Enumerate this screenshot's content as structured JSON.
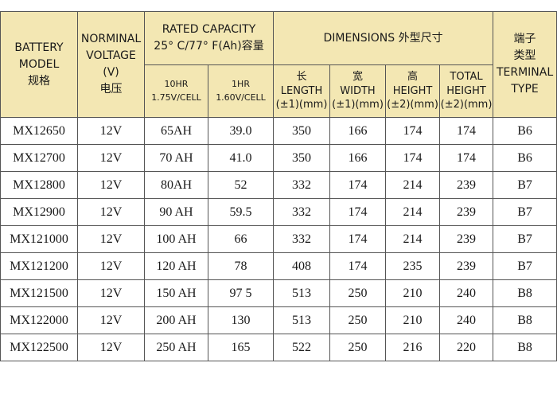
{
  "header": {
    "model": {
      "line1": "BATTERY",
      "line2": "MODEL",
      "line3": "规格"
    },
    "voltage": {
      "line1": "NORMINAL",
      "line2": "VOLTAGE",
      "line3": "(V)",
      "line4": "电压"
    },
    "capacity": {
      "line1": "RATED CAPACITY",
      "line2": "25° C/77° F(Ah)容量",
      "hr10": {
        "line1": "10HR",
        "line2": "1.75V/CELL"
      },
      "hr1": {
        "line1": "1HR",
        "line2": "1.60V/CELL"
      }
    },
    "dimensions": {
      "title": "DIMENSIONS  外型尺寸",
      "length": {
        "line1": "长",
        "line2": "LENGTH",
        "line3": "(±1)(mm)"
      },
      "width": {
        "line1": "宽",
        "line2": "WIDTH",
        "line3": "(±1)(mm)"
      },
      "height": {
        "line1": "高",
        "line2": "HEIGHT",
        "line3": "(±2)(mm)"
      },
      "total": {
        "line1": "TOTAL",
        "line2": "HEIGHT",
        "line3": "(±2)(mm)"
      }
    },
    "terminal": {
      "line1": "端子",
      "line2": "类型",
      "line3": "TERMINAL",
      "line4": "TYPE"
    }
  },
  "rows": [
    {
      "model": "MX12650",
      "voltage": "12V",
      "cap10": "65AH",
      "cap1": "39.0",
      "length": "350",
      "width": "166",
      "height": "174",
      "total": "174",
      "terminal": "B6"
    },
    {
      "model": "MX12700",
      "voltage": "12V",
      "cap10": "70 AH",
      "cap1": "41.0",
      "length": "350",
      "width": "166",
      "height": "174",
      "total": "174",
      "terminal": "B6"
    },
    {
      "model": "MX12800",
      "voltage": "12V",
      "cap10": "80AH",
      "cap1": "52",
      "length": "332",
      "width": "174",
      "height": "214",
      "total": "239",
      "terminal": "B7"
    },
    {
      "model": "MX12900",
      "voltage": "12V",
      "cap10": "90 AH",
      "cap1": "59.5",
      "length": "332",
      "width": "174",
      "height": "214",
      "total": "239",
      "terminal": "B7"
    },
    {
      "model": "MX121000",
      "voltage": "12V",
      "cap10": "100 AH",
      "cap1": "66",
      "length": "332",
      "width": "174",
      "height": "214",
      "total": "239",
      "terminal": "B7"
    },
    {
      "model": "MX121200",
      "voltage": "12V",
      "cap10": "120 AH",
      "cap1": "78",
      "length": "408",
      "width": "174",
      "height": "235",
      "total": "239",
      "terminal": "B7"
    },
    {
      "model": "MX121500",
      "voltage": "12V",
      "cap10": "150 AH",
      "cap1": "97 5",
      "length": "513",
      "width": "250",
      "height": "210",
      "total": "240",
      "terminal": "B8"
    },
    {
      "model": "MX122000",
      "voltage": "12V",
      "cap10": "200 AH",
      "cap1": "130",
      "length": "513",
      "width": "250",
      "height": "210",
      "total": "240",
      "terminal": "B8"
    },
    {
      "model": "MX122500",
      "voltage": "12V",
      "cap10": "250 AH",
      "cap1": "165",
      "length": "522",
      "width": "250",
      "height": "216",
      "total": "220",
      "terminal": "B8"
    }
  ]
}
